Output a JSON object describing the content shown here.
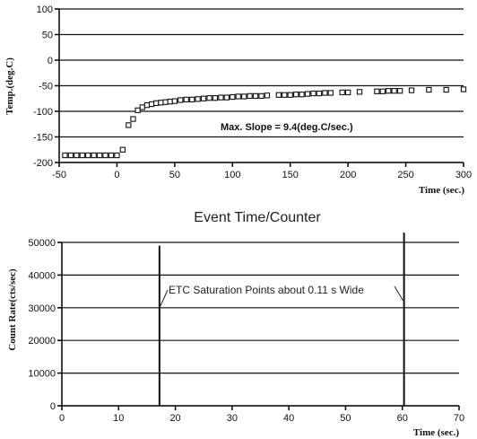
{
  "chart_data": [
    {
      "type": "scatter",
      "title": "",
      "xlabel": "Time (sec.)",
      "ylabel": "Temp.(deg.C)",
      "xlim": [
        -50,
        300
      ],
      "ylim": [
        -200,
        100
      ],
      "xticks": [
        -50,
        0,
        50,
        100,
        150,
        200,
        250,
        300
      ],
      "yticks": [
        100,
        50,
        0,
        -50,
        -100,
        -150,
        -200
      ],
      "grid": "horizontal",
      "annotation": "Max. Slope = 9.4(deg.C/sec.)",
      "series": [
        {
          "marker": "open-square",
          "x": [
            -45,
            -40,
            -35,
            -30,
            -25,
            -20,
            -15,
            -10,
            -5,
            0,
            5,
            10,
            14,
            18,
            22,
            26,
            30,
            34,
            38,
            42,
            46,
            50,
            55,
            60,
            65,
            70,
            75,
            80,
            85,
            90,
            95,
            100,
            105,
            110,
            115,
            120,
            125,
            130,
            140,
            145,
            150,
            155,
            160,
            165,
            170,
            175,
            180,
            185,
            195,
            200,
            210,
            225,
            230,
            235,
            240,
            245,
            255,
            270,
            285,
            300
          ],
          "y": [
            -186,
            -186,
            -186,
            -186,
            -186,
            -186,
            -186,
            -186,
            -186,
            -186,
            -175,
            -127,
            -115,
            -98,
            -92,
            -88,
            -86,
            -84,
            -83,
            -82,
            -81,
            -80,
            -78,
            -77,
            -77,
            -76,
            -75,
            -74,
            -74,
            -73,
            -73,
            -72,
            -71,
            -71,
            -70,
            -70,
            -70,
            -69,
            -68,
            -68,
            -68,
            -67,
            -67,
            -66,
            -65,
            -65,
            -64,
            -64,
            -63,
            -63,
            -62,
            -61,
            -61,
            -60,
            -60,
            -60,
            -59,
            -58,
            -58,
            -57
          ]
        }
      ]
    },
    {
      "type": "line",
      "title": "Event Time/Counter",
      "xlabel": "Time (sec.)",
      "ylabel": "Count  Rate(cts/sec)",
      "xlim": [
        0,
        70
      ],
      "ylim": [
        0,
        50000
      ],
      "xticks": [
        0,
        10,
        20,
        30,
        40,
        50,
        60,
        70
      ],
      "yticks": [
        50000,
        40000,
        30000,
        20000,
        10000,
        0
      ],
      "grid": "horizontal",
      "annotation": "ETC Saturation Points about 0.11 s Wide",
      "series": [
        {
          "x": [
            17.2,
            17.2
          ],
          "y": [
            0,
            49000
          ]
        },
        {
          "x": [
            60.3,
            60.3
          ],
          "y": [
            0,
            53000
          ]
        }
      ]
    }
  ]
}
